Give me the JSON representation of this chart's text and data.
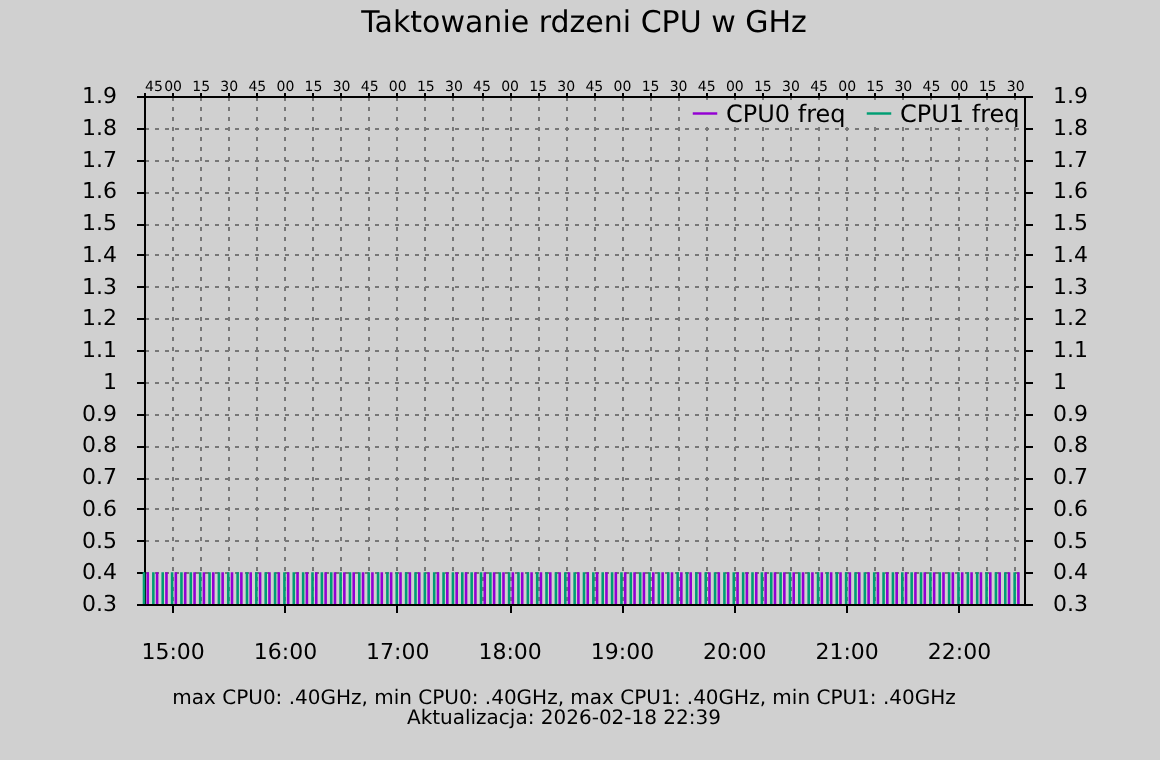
{
  "chart_data": {
    "type": "bar",
    "title": "Taktowanie rdzeni CPU w GHz",
    "annotations": [
      "max CPU0: .40GHz, min CPU0: .40GHz, max CPU1: .40GHz, min CPU1: .40GHz",
      "Aktualizacja: 2026-02-18 22:39"
    ],
    "xlim": [
      "2026-02-18T14:45",
      "2026-02-18T22:35"
    ],
    "xticks": [
      {
        "value": "2026-02-18T15:00",
        "label": "15:00"
      },
      {
        "value": "2026-02-18T16:00",
        "label": "16:00"
      },
      {
        "value": "2026-02-18T17:00",
        "label": "17:00"
      },
      {
        "value": "2026-02-18T18:00",
        "label": "18:00"
      },
      {
        "value": "2026-02-18T19:00",
        "label": "19:00"
      },
      {
        "value": "2026-02-18T20:00",
        "label": "20:00"
      },
      {
        "value": "2026-02-18T21:00",
        "label": "21:00"
      },
      {
        "value": "2026-02-18T22:00",
        "label": "22:00"
      }
    ],
    "x2lim": [
      "2026-02-18T14:45",
      "2026-02-18T22:35"
    ],
    "x2ticks": [
      {
        "value": "2026-02-18T14:45",
        "label": "45"
      },
      {
        "value": "2026-02-18T15:00",
        "label": "00"
      },
      {
        "value": "2026-02-18T15:15",
        "label": "15"
      },
      {
        "value": "2026-02-18T15:30",
        "label": "30"
      },
      {
        "value": "2026-02-18T15:45",
        "label": "45"
      },
      {
        "value": "2026-02-18T16:00",
        "label": "00"
      },
      {
        "value": "2026-02-18T16:15",
        "label": "15"
      },
      {
        "value": "2026-02-18T16:30",
        "label": "30"
      },
      {
        "value": "2026-02-18T16:45",
        "label": "45"
      },
      {
        "value": "2026-02-18T17:00",
        "label": "00"
      },
      {
        "value": "2026-02-18T17:15",
        "label": "15"
      },
      {
        "value": "2026-02-18T17:30",
        "label": "30"
      },
      {
        "value": "2026-02-18T17:45",
        "label": "45"
      },
      {
        "value": "2026-02-18T18:00",
        "label": "00"
      },
      {
        "value": "2026-02-18T18:15",
        "label": "15"
      },
      {
        "value": "2026-02-18T18:30",
        "label": "30"
      },
      {
        "value": "2026-02-18T18:45",
        "label": "45"
      },
      {
        "value": "2026-02-18T19:00",
        "label": "00"
      },
      {
        "value": "2026-02-18T19:15",
        "label": "15"
      },
      {
        "value": "2026-02-18T19:30",
        "label": "30"
      },
      {
        "value": "2026-02-18T19:45",
        "label": "45"
      },
      {
        "value": "2026-02-18T20:00",
        "label": "00"
      },
      {
        "value": "2026-02-18T20:15",
        "label": "15"
      },
      {
        "value": "2026-02-18T20:30",
        "label": "30"
      },
      {
        "value": "2026-02-18T20:45",
        "label": "45"
      },
      {
        "value": "2026-02-18T21:00",
        "label": "00"
      },
      {
        "value": "2026-02-18T21:15",
        "label": "15"
      },
      {
        "value": "2026-02-18T21:30",
        "label": "30"
      },
      {
        "value": "2026-02-18T21:45",
        "label": "45"
      },
      {
        "value": "2026-02-18T22:00",
        "label": "00"
      },
      {
        "value": "2026-02-18T22:15",
        "label": "15"
      },
      {
        "value": "2026-02-18T22:30",
        "label": "30"
      }
    ],
    "ylim": [
      0.3,
      1.9
    ],
    "yticks": [
      0.3,
      0.4,
      0.5,
      0.6,
      0.7,
      0.8,
      0.9,
      1,
      1.1,
      1.2,
      1.3,
      1.4,
      1.5,
      1.6,
      1.7,
      1.8,
      1.9
    ],
    "y2lim": [
      0.3,
      1.9
    ],
    "y2ticks": [
      0.3,
      0.4,
      0.5,
      0.6,
      0.7,
      0.8,
      0.9,
      1,
      1.1,
      1.2,
      1.3,
      1.4,
      1.5,
      1.6,
      1.7,
      1.8,
      1.9
    ],
    "grid": true,
    "legend": "top right",
    "series": [
      {
        "name": "CPU0 freq",
        "color": "#9400d3",
        "x": [
          "2026-02-18T14:47",
          "2026-02-18T14:52",
          "2026-02-18T14:57",
          "2026-02-18T15:02",
          "2026-02-18T15:07",
          "2026-02-18T15:12",
          "2026-02-18T15:17",
          "2026-02-18T15:22",
          "2026-02-18T15:27",
          "2026-02-18T15:32",
          "2026-02-18T15:37",
          "2026-02-18T15:42",
          "2026-02-18T15:47",
          "2026-02-18T15:52",
          "2026-02-18T15:57",
          "2026-02-18T16:02",
          "2026-02-18T16:07",
          "2026-02-18T16:12",
          "2026-02-18T16:17",
          "2026-02-18T16:22",
          "2026-02-18T16:27",
          "2026-02-18T16:32",
          "2026-02-18T16:37",
          "2026-02-18T16:42",
          "2026-02-18T16:47",
          "2026-02-18T16:52",
          "2026-02-18T16:57",
          "2026-02-18T17:02",
          "2026-02-18T17:07",
          "2026-02-18T17:12",
          "2026-02-18T17:17",
          "2026-02-18T17:22",
          "2026-02-18T17:27",
          "2026-02-18T17:32",
          "2026-02-18T17:37",
          "2026-02-18T17:42",
          "2026-02-18T17:47",
          "2026-02-18T17:52",
          "2026-02-18T17:57",
          "2026-02-18T18:02",
          "2026-02-18T18:07",
          "2026-02-18T18:12",
          "2026-02-18T18:17",
          "2026-02-18T18:22",
          "2026-02-18T18:27",
          "2026-02-18T18:32",
          "2026-02-18T18:37",
          "2026-02-18T18:42",
          "2026-02-18T18:47",
          "2026-02-18T18:52",
          "2026-02-18T18:57",
          "2026-02-18T19:02",
          "2026-02-18T19:07",
          "2026-02-18T19:12",
          "2026-02-18T19:17",
          "2026-02-18T19:22",
          "2026-02-18T19:27",
          "2026-02-18T19:32",
          "2026-02-18T19:37",
          "2026-02-18T19:42",
          "2026-02-18T19:47",
          "2026-02-18T19:52",
          "2026-02-18T19:57",
          "2026-02-18T20:02",
          "2026-02-18T20:07",
          "2026-02-18T20:12",
          "2026-02-18T20:17",
          "2026-02-18T20:22",
          "2026-02-18T20:27",
          "2026-02-18T20:32",
          "2026-02-18T20:37",
          "2026-02-18T20:42",
          "2026-02-18T20:47",
          "2026-02-18T20:52",
          "2026-02-18T20:57",
          "2026-02-18T21:02",
          "2026-02-18T21:07",
          "2026-02-18T21:12",
          "2026-02-18T21:17",
          "2026-02-18T21:22",
          "2026-02-18T21:27",
          "2026-02-18T21:32",
          "2026-02-18T21:37",
          "2026-02-18T21:42",
          "2026-02-18T21:47",
          "2026-02-18T21:52",
          "2026-02-18T21:57",
          "2026-02-18T22:02",
          "2026-02-18T22:07",
          "2026-02-18T22:12",
          "2026-02-18T22:17",
          "2026-02-18T22:22",
          "2026-02-18T22:27",
          "2026-02-18T22:32"
        ],
        "values": [
          0.4,
          0.4,
          0.4,
          0.4,
          0.4,
          0.4,
          0.4,
          0.4,
          0.4,
          0.4,
          0.4,
          0.4,
          0.4,
          0.4,
          0.4,
          0.4,
          0.4,
          0.4,
          0.4,
          0.4,
          0.4,
          0.4,
          0.4,
          0.4,
          0.4,
          0.4,
          0.4,
          0.4,
          0.4,
          0.4,
          0.4,
          0.4,
          0.4,
          0.4,
          0.4,
          0.4,
          0.4,
          0.4,
          0.4,
          0.4,
          0.4,
          0.4,
          0.4,
          0.4,
          0.4,
          0.4,
          0.4,
          0.4,
          0.4,
          0.4,
          0.4,
          0.4,
          0.4,
          0.4,
          0.4,
          0.4,
          0.4,
          0.4,
          0.4,
          0.4,
          0.4,
          0.4,
          0.4,
          0.4,
          0.4,
          0.4,
          0.4,
          0.4,
          0.4,
          0.4,
          0.4,
          0.4,
          0.4,
          0.4,
          0.4,
          0.4,
          0.4,
          0.4,
          0.4,
          0.4,
          0.4,
          0.4,
          0.4,
          0.4,
          0.4,
          0.4,
          0.4,
          0.4,
          0.4,
          0.4,
          0.4,
          0.4,
          0.4,
          0.4
        ]
      },
      {
        "name": "CPU1 freq",
        "color": "#009e73",
        "x": [
          "2026-02-18T14:45",
          "2026-02-18T14:50",
          "2026-02-18T14:55",
          "2026-02-18T15:00",
          "2026-02-18T15:05",
          "2026-02-18T15:10",
          "2026-02-18T15:15",
          "2026-02-18T15:20",
          "2026-02-18T15:25",
          "2026-02-18T15:30",
          "2026-02-18T15:35",
          "2026-02-18T15:40",
          "2026-02-18T15:45",
          "2026-02-18T15:50",
          "2026-02-18T15:55",
          "2026-02-18T16:00",
          "2026-02-18T16:05",
          "2026-02-18T16:10",
          "2026-02-18T16:15",
          "2026-02-18T16:20",
          "2026-02-18T16:25",
          "2026-02-18T16:30",
          "2026-02-18T16:35",
          "2026-02-18T16:40",
          "2026-02-18T16:45",
          "2026-02-18T16:50",
          "2026-02-18T16:55",
          "2026-02-18T17:00",
          "2026-02-18T17:05",
          "2026-02-18T17:10",
          "2026-02-18T17:15",
          "2026-02-18T17:20",
          "2026-02-18T17:25",
          "2026-02-18T17:30",
          "2026-02-18T17:35",
          "2026-02-18T17:40",
          "2026-02-18T17:45",
          "2026-02-18T17:50",
          "2026-02-18T17:55",
          "2026-02-18T18:00",
          "2026-02-18T18:05",
          "2026-02-18T18:10",
          "2026-02-18T18:15",
          "2026-02-18T18:20",
          "2026-02-18T18:25",
          "2026-02-18T18:30",
          "2026-02-18T18:35",
          "2026-02-18T18:40",
          "2026-02-18T18:45",
          "2026-02-18T18:50",
          "2026-02-18T18:55",
          "2026-02-18T19:00",
          "2026-02-18T19:05",
          "2026-02-18T19:10",
          "2026-02-18T19:15",
          "2026-02-18T19:20",
          "2026-02-18T19:25",
          "2026-02-18T19:30",
          "2026-02-18T19:35",
          "2026-02-18T19:40",
          "2026-02-18T19:45",
          "2026-02-18T19:50",
          "2026-02-18T19:55",
          "2026-02-18T20:00",
          "2026-02-18T20:05",
          "2026-02-18T20:10",
          "2026-02-18T20:15",
          "2026-02-18T20:20",
          "2026-02-18T20:25",
          "2026-02-18T20:30",
          "2026-02-18T20:35",
          "2026-02-18T20:40",
          "2026-02-18T20:45",
          "2026-02-18T20:50",
          "2026-02-18T20:55",
          "2026-02-18T21:00",
          "2026-02-18T21:05",
          "2026-02-18T21:10",
          "2026-02-18T21:15",
          "2026-02-18T21:20",
          "2026-02-18T21:25",
          "2026-02-18T21:30",
          "2026-02-18T21:35",
          "2026-02-18T21:40",
          "2026-02-18T21:45",
          "2026-02-18T21:50",
          "2026-02-18T21:55",
          "2026-02-18T22:00",
          "2026-02-18T22:05",
          "2026-02-18T22:10",
          "2026-02-18T22:15",
          "2026-02-18T22:20",
          "2026-02-18T22:25",
          "2026-02-18T22:30"
        ],
        "values": [
          0.4,
          0.4,
          0.4,
          0.4,
          0.4,
          0.4,
          0.4,
          0.4,
          0.4,
          0.4,
          0.4,
          0.4,
          0.4,
          0.4,
          0.4,
          0.4,
          0.4,
          0.4,
          0.4,
          0.4,
          0.4,
          0.4,
          0.4,
          0.4,
          0.4,
          0.4,
          0.4,
          0.4,
          0.4,
          0.4,
          0.4,
          0.4,
          0.4,
          0.4,
          0.4,
          0.4,
          0.4,
          0.4,
          0.4,
          0.4,
          0.4,
          0.4,
          0.4,
          0.4,
          0.4,
          0.4,
          0.4,
          0.4,
          0.4,
          0.4,
          0.4,
          0.4,
          0.4,
          0.4,
          0.4,
          0.4,
          0.4,
          0.4,
          0.4,
          0.4,
          0.4,
          0.4,
          0.4,
          0.4,
          0.4,
          0.4,
          0.4,
          0.4,
          0.4,
          0.4,
          0.4,
          0.4,
          0.4,
          0.4,
          0.4,
          0.4,
          0.4,
          0.4,
          0.4,
          0.4,
          0.4,
          0.4,
          0.4,
          0.4,
          0.4,
          0.4,
          0.4,
          0.4,
          0.4,
          0.4,
          0.4,
          0.4,
          0.4,
          0.4
        ]
      }
    ]
  }
}
